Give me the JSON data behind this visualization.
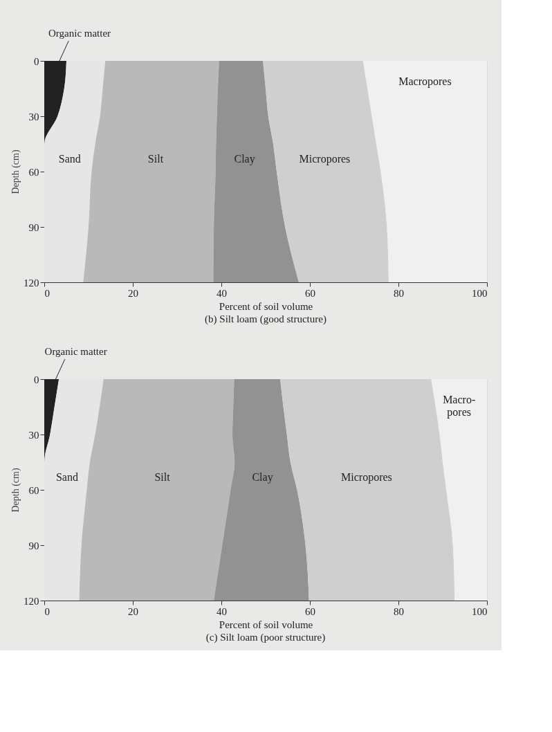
{
  "chart_data": [
    {
      "type": "area",
      "title": "(b) Silt loam (good structure)",
      "xlabel": "Percent of soil volume",
      "ylabel": "Depth (cm)",
      "orientation": "horizontal",
      "stacked": true,
      "x": [
        0,
        15,
        30,
        45,
        60,
        90,
        120
      ],
      "xlim": [
        0,
        100
      ],
      "xticks": [
        0,
        20,
        40,
        60,
        80,
        100
      ],
      "ylim": [
        120,
        0
      ],
      "yticks": [
        0,
        30,
        60,
        90,
        120
      ],
      "series": [
        {
          "name": "Organic matter",
          "color": "#222222",
          "values": [
            5,
            4.5,
            3,
            0,
            0,
            0,
            0
          ]
        },
        {
          "name": "Sand",
          "color": "#e6e6e6",
          "values": [
            8.8,
            8.7,
            9.6,
            11.5,
            10.7,
            10,
            8.8
          ]
        },
        {
          "name": "Silt",
          "color": "#b9b9b9",
          "values": [
            25.7,
            26,
            26.4,
            27.3,
            28,
            28.3,
            29.4
          ]
        },
        {
          "name": "Clay",
          "color": "#929292",
          "values": [
            9.9,
            10.8,
            11.6,
            12.9,
            13.8,
            16.1,
            19.3
          ]
        },
        {
          "name": "Micropores",
          "color": "#cfcfcf",
          "values": [
            22.6,
            23,
            23.4,
            23.3,
            23.5,
            23,
            20.3
          ]
        },
        {
          "name": "Macropores",
          "color": "#f0f0f0",
          "values": [
            28,
            27,
            26,
            25,
            24,
            22.6,
            22.2
          ]
        }
      ]
    },
    {
      "type": "area",
      "title": "(c) Silt loam (poor structure)",
      "xlabel": "Percent of soil volume",
      "ylabel": "Depth (cm)",
      "orientation": "horizontal",
      "stacked": true,
      "x": [
        0,
        15,
        30,
        45,
        60,
        90,
        120
      ],
      "xlim": [
        0,
        100
      ],
      "xticks": [
        0,
        20,
        40,
        60,
        80,
        100
      ],
      "ylim": [
        120,
        0
      ],
      "yticks": [
        0,
        30,
        60,
        90,
        120
      ],
      "series": [
        {
          "name": "Organic matter",
          "color": "#222222",
          "values": [
            3.3,
            2.3,
            1.3,
            0,
            0,
            0,
            0
          ]
        },
        {
          "name": "Sand",
          "color": "#e6e6e6",
          "values": [
            10.1,
            10.2,
            10.2,
            10.3,
            9.6,
            8.4,
            7.9
          ]
        },
        {
          "name": "Silt",
          "color": "#b9b9b9",
          "values": [
            29.5,
            30.2,
            31,
            32.7,
            32.5,
            31.8,
            30.4
          ]
        },
        {
          "name": "Clay",
          "color": "#929292",
          "values": [
            10.4,
            11.3,
            12.3,
            12.6,
            15,
            18.8,
            21.5
          ]
        },
        {
          "name": "Micropores",
          "color": "#cfcfcf",
          "values": [
            34.1,
            34.4,
            34.5,
            34.4,
            33.7,
            33.3,
            32.9
          ]
        },
        {
          "name": "Macro-\npores",
          "color": "#f0f0f0",
          "values": [
            12.6,
            11.6,
            10.7,
            10,
            9.2,
            7.7,
            7.3
          ]
        }
      ]
    }
  ]
}
